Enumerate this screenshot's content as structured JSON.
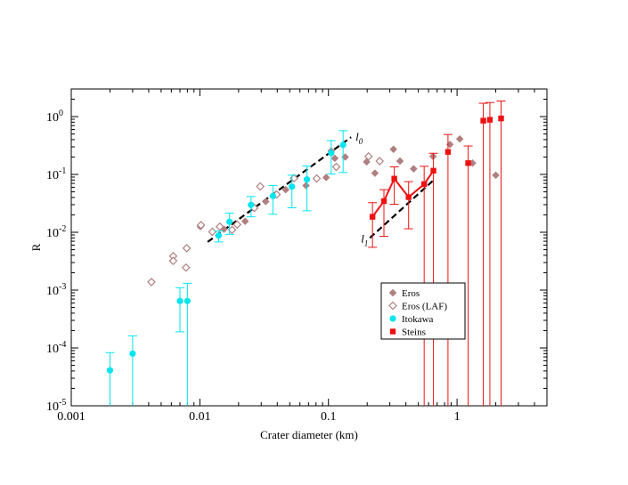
{
  "chart_data": {
    "type": "scatter",
    "xscale": "log",
    "yscale": "log",
    "xlim": [
      0.001,
      5
    ],
    "ylim": [
      1e-05,
      3
    ],
    "xlabel": "Crater diameter (km)",
    "ylabel": "R",
    "x_ticks": [
      {
        "value": 0.001,
        "label": "0.001"
      },
      {
        "value": 0.01,
        "label": "0.01"
      },
      {
        "value": 0.1,
        "label": "0.1"
      },
      {
        "value": 1,
        "label": "1"
      }
    ],
    "y_ticks": [
      {
        "value": 1e-05,
        "base": "10",
        "exp": "-5"
      },
      {
        "value": 0.0001,
        "base": "10",
        "exp": "-4"
      },
      {
        "value": 0.001,
        "base": "10",
        "exp": "-3"
      },
      {
        "value": 0.01,
        "base": "10",
        "exp": "-2"
      },
      {
        "value": 0.1,
        "base": "10",
        "exp": "-1"
      },
      {
        "value": 1,
        "base": "10",
        "exp": "0"
      }
    ],
    "legend_position": "lower-right",
    "series": [
      {
        "name": "Eros",
        "marker": "diamond-filled",
        "color": "#b07f7f",
        "points": [
          {
            "x": 0.0101,
            "y": 0.0125
          },
          {
            "x": 0.0154,
            "y": 0.0113
          },
          {
            "x": 0.0225,
            "y": 0.0155
          },
          {
            "x": 0.0325,
            "y": 0.034
          },
          {
            "x": 0.0465,
            "y": 0.0545
          },
          {
            "x": 0.067,
            "y": 0.0642
          },
          {
            "x": 0.096,
            "y": 0.0885
          },
          {
            "x": 0.105,
            "y": 0.255
          },
          {
            "x": 0.112,
            "y": 0.19
          },
          {
            "x": 0.135,
            "y": 0.2
          },
          {
            "x": 0.198,
            "y": 0.165
          },
          {
            "x": 0.23,
            "y": 0.105
          },
          {
            "x": 0.32,
            "y": 0.272
          },
          {
            "x": 0.36,
            "y": 0.17
          },
          {
            "x": 0.46,
            "y": 0.125
          },
          {
            "x": 0.65,
            "y": 0.205
          },
          {
            "x": 0.88,
            "y": 0.33
          },
          {
            "x": 1.05,
            "y": 0.41
          },
          {
            "x": 1.32,
            "y": 0.157
          },
          {
            "x": 2.0,
            "y": 0.097
          }
        ]
      },
      {
        "name": "Eros (LAF)",
        "marker": "diamond-open",
        "color": "#b07f7f",
        "points": [
          {
            "x": 0.0042,
            "y": 0.00138
          },
          {
            "x": 0.0062,
            "y": 0.00387
          },
          {
            "x": 0.0062,
            "y": 0.0032
          },
          {
            "x": 0.0078,
            "y": 0.00245
          },
          {
            "x": 0.0079,
            "y": 0.0053
          },
          {
            "x": 0.0102,
            "y": 0.0133
          },
          {
            "x": 0.0125,
            "y": 0.0102
          },
          {
            "x": 0.0143,
            "y": 0.0125
          },
          {
            "x": 0.0195,
            "y": 0.0136
          },
          {
            "x": 0.0178,
            "y": 0.011
          },
          {
            "x": 0.0265,
            "y": 0.0263
          },
          {
            "x": 0.0295,
            "y": 0.062
          },
          {
            "x": 0.0395,
            "y": 0.045
          },
          {
            "x": 0.054,
            "y": 0.086
          },
          {
            "x": 0.081,
            "y": 0.085
          },
          {
            "x": 0.115,
            "y": 0.135
          },
          {
            "x": 0.205,
            "y": 0.205
          },
          {
            "x": 0.25,
            "y": 0.17
          }
        ]
      },
      {
        "name": "Itokawa",
        "marker": "circle-filled",
        "color": "#00e5ee",
        "points": [
          {
            "x": 0.002,
            "y": 4.1e-05,
            "err_low": 1e-05,
            "err_high": 8.3e-05
          },
          {
            "x": 0.003,
            "y": 8e-05,
            "err_low": 1e-05,
            "err_high": 0.000162
          },
          {
            "x": 0.007,
            "y": 0.00065,
            "err_low": 0.00019,
            "err_high": 0.0011
          },
          {
            "x": 0.008,
            "y": 0.00065,
            "err_low": 1e-05,
            "err_high": 0.00131
          },
          {
            "x": 0.014,
            "y": 0.0088,
            "err_low": 0.0068,
            "err_high": 0.0105
          },
          {
            "x": 0.017,
            "y": 0.0152,
            "err_low": 0.0092,
            "err_high": 0.0215
          },
          {
            "x": 0.025,
            "y": 0.0298,
            "err_low": 0.0185,
            "err_high": 0.0415
          },
          {
            "x": 0.037,
            "y": 0.0425,
            "err_low": 0.0205,
            "err_high": 0.0645
          },
          {
            "x": 0.052,
            "y": 0.0615,
            "err_low": 0.0265,
            "err_high": 0.097
          },
          {
            "x": 0.068,
            "y": 0.082,
            "err_low": 0.0235,
            "err_high": 0.14
          },
          {
            "x": 0.105,
            "y": 0.235,
            "err_low": 0.102,
            "err_high": 0.385
          },
          {
            "x": 0.13,
            "y": 0.325,
            "err_low": 0.108,
            "err_high": 0.57
          }
        ]
      },
      {
        "name": "Steins",
        "marker": "square-filled",
        "color": "#ee1111",
        "connect_first_n": 6,
        "points": [
          {
            "x": 0.22,
            "y": 0.0185,
            "err_low": 0.0055,
            "err_high": 0.0325
          },
          {
            "x": 0.27,
            "y": 0.0345,
            "err_low": 0.0085,
            "err_high": 0.0545
          },
          {
            "x": 0.325,
            "y": 0.0845,
            "err_low": 0.0305,
            "err_high": 0.135
          },
          {
            "x": 0.42,
            "y": 0.0405,
            "err_low": 0.0115,
            "err_high": 0.075
          },
          {
            "x": 0.555,
            "y": 0.068,
            "err_low": 1e-05,
            "err_high": 0.138
          },
          {
            "x": 0.655,
            "y": 0.116,
            "err_low": 1e-05,
            "err_high": 0.232
          },
          {
            "x": 0.85,
            "y": 0.245,
            "err_low": 1e-05,
            "err_high": 0.49
          },
          {
            "x": 1.22,
            "y": 0.157,
            "err_low": 1e-05,
            "err_high": 0.31
          },
          {
            "x": 1.6,
            "y": 0.85,
            "err_low": 1e-05,
            "err_high": 1.7
          },
          {
            "x": 1.8,
            "y": 0.88,
            "err_low": 1e-05,
            "err_high": 1.75
          },
          {
            "x": 2.2,
            "y": 0.93,
            "err_low": 1e-05,
            "err_high": 1.86
          }
        ]
      }
    ],
    "fit_lines": [
      {
        "label": "l0",
        "label_main": "l",
        "label_sub": "0",
        "x": [
          0.0115,
          0.15
        ],
        "y": [
          0.0068,
          0.44
        ]
      },
      {
        "label": "l1",
        "label_main": "l",
        "label_sub": "1",
        "x": [
          0.21,
          0.65
        ],
        "y": [
          0.008,
          0.078
        ]
      }
    ]
  }
}
